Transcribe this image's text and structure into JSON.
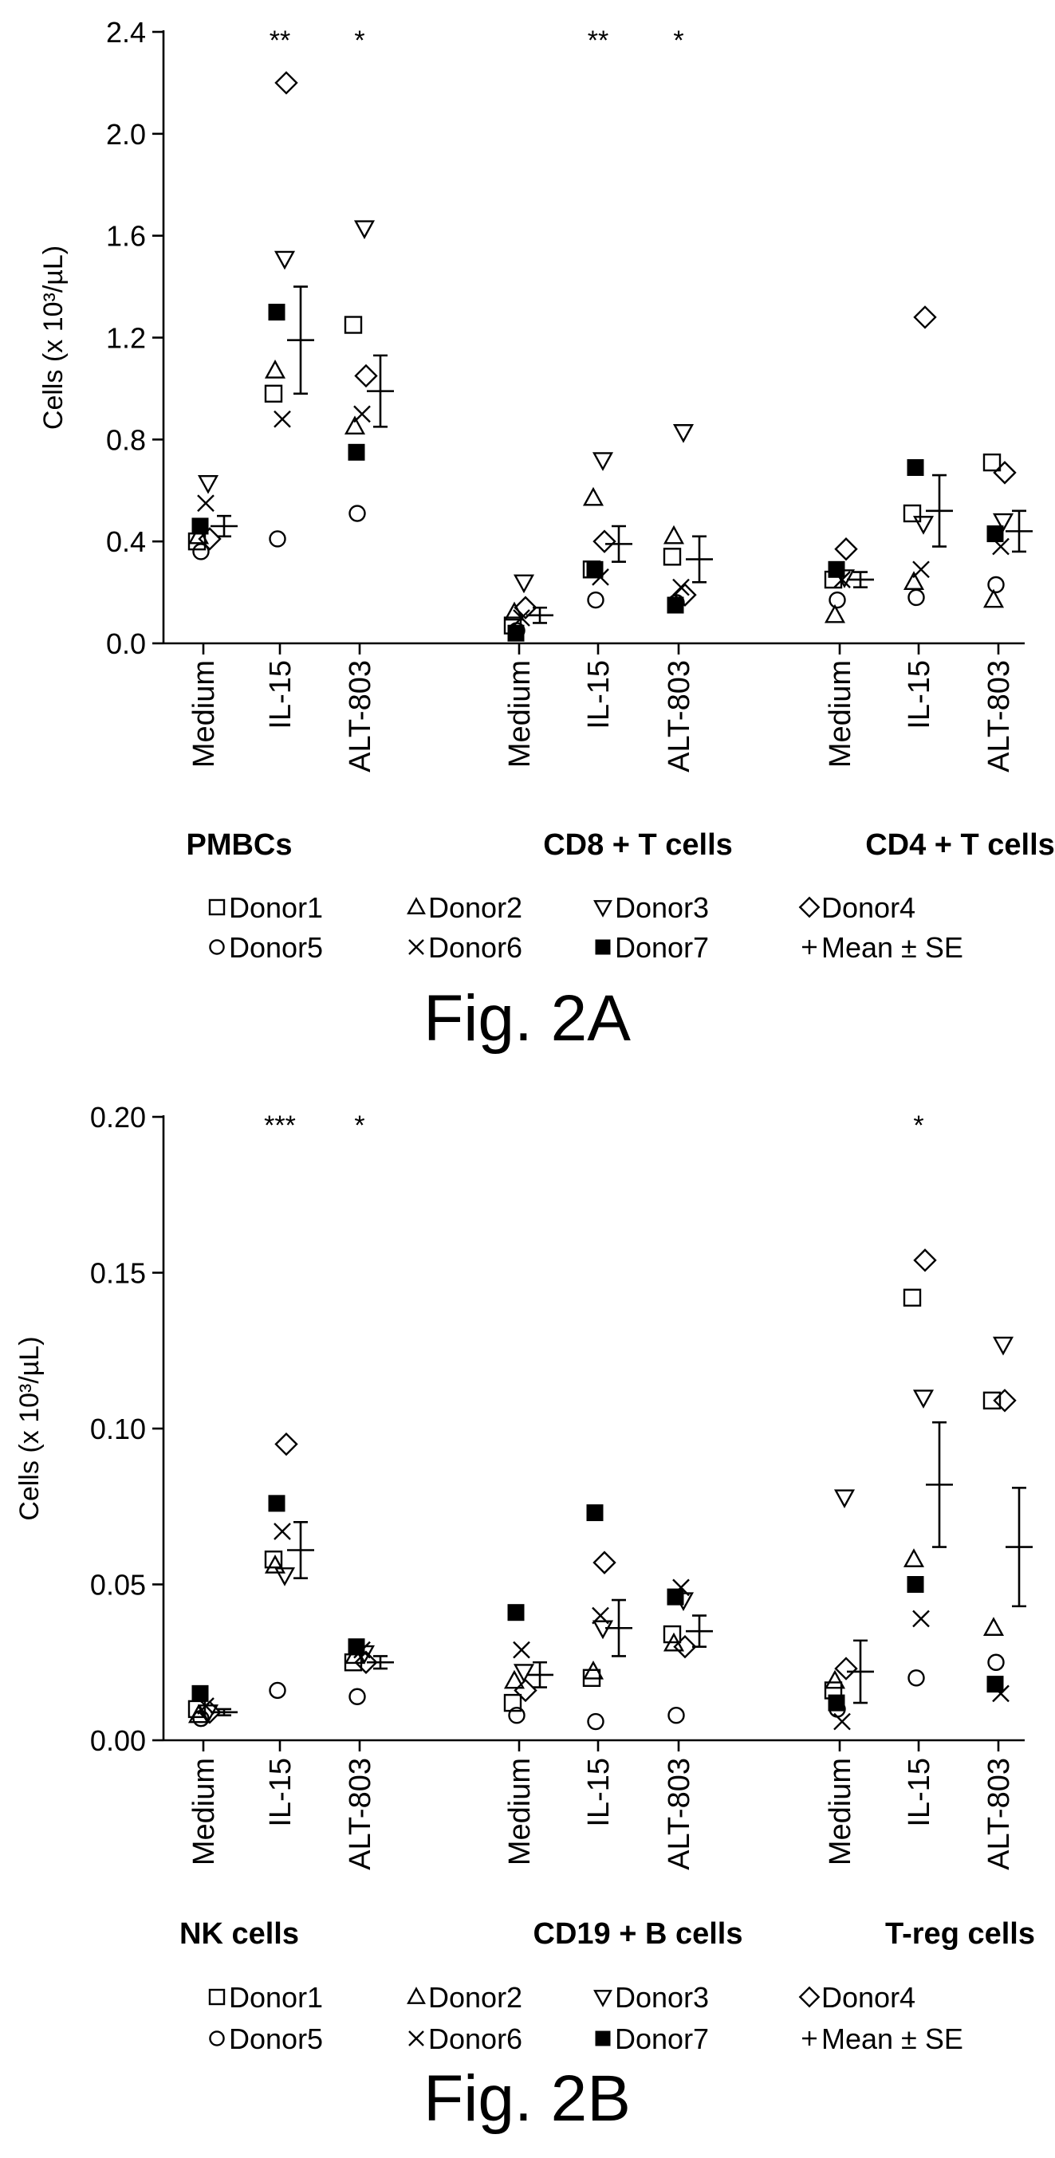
{
  "legend": {
    "donors": [
      "Donor1",
      "Donor2",
      "Donor3",
      "Donor4",
      "Donor5",
      "Donor6",
      "Donor7"
    ],
    "mean_label": "Mean ± SE",
    "markers": [
      "square-open",
      "triangle-up-open",
      "triangle-down-open",
      "diamond-open",
      "circle-open",
      "x-mark",
      "square-filled"
    ]
  },
  "chart_data": [
    {
      "type": "scatter",
      "figure_label": "Fig. 2A",
      "ylabel": "Cells (x 10³/µL)",
      "ylim": [
        0,
        2.4
      ],
      "yticks": [
        "0.0",
        "0.4",
        "0.8",
        "1.2",
        "1.6",
        "2.0",
        "2.4"
      ],
      "ytick_values": [
        0,
        0.4,
        0.8,
        1.2,
        1.6,
        2.0,
        2.4
      ],
      "groups": [
        {
          "label": "PMBCs",
          "conditions": [
            {
              "label": "Medium",
              "sig": "",
              "donors": [
                0.4,
                0.42,
                0.63,
                0.41,
                0.36,
                0.55,
                0.46
              ],
              "mean": 0.46,
              "se": 0.04
            },
            {
              "label": "IL-15",
              "sig": "**",
              "donors": [
                0.98,
                1.07,
                1.51,
                2.2,
                0.41,
                0.88,
                1.3
              ],
              "mean": 1.19,
              "se": 0.21
            },
            {
              "label": "ALT-803",
              "sig": "*",
              "donors": [
                1.25,
                0.85,
                1.63,
                1.05,
                0.51,
                0.9,
                0.75
              ],
              "mean": 0.99,
              "se": 0.14
            }
          ]
        },
        {
          "label": "CD8 + T cells",
          "conditions": [
            {
              "label": "Medium",
              "sig": "",
              "donors": [
                0.07,
                0.12,
                0.24,
                0.14,
                0.05,
                0.1,
                0.04
              ],
              "mean": 0.11,
              "se": 0.03
            },
            {
              "label": "IL-15",
              "sig": "**",
              "donors": [
                0.29,
                0.57,
                0.72,
                0.4,
                0.17,
                0.26,
                0.29
              ],
              "mean": 0.39,
              "se": 0.07
            },
            {
              "label": "ALT-803",
              "sig": "*",
              "donors": [
                0.34,
                0.42,
                0.83,
                0.19,
                0.16,
                0.22,
                0.15
              ],
              "mean": 0.33,
              "se": 0.09
            }
          ]
        },
        {
          "label": "CD4 + T cells",
          "conditions": [
            {
              "label": "Medium",
              "sig": "",
              "donors": [
                0.25,
                0.11,
                0.26,
                0.37,
                0.17,
                0.25,
                0.29
              ],
              "mean": 0.25,
              "se": 0.03
            },
            {
              "label": "IL-15",
              "sig": "",
              "donors": [
                0.51,
                0.24,
                0.47,
                1.28,
                0.18,
                0.29,
                0.69
              ],
              "mean": 0.52,
              "se": 0.14
            },
            {
              "label": "ALT-803",
              "sig": "",
              "donors": [
                0.71,
                0.17,
                0.48,
                0.67,
                0.23,
                0.38,
                0.43
              ],
              "mean": 0.44,
              "se": 0.08
            }
          ]
        }
      ]
    },
    {
      "type": "scatter",
      "figure_label": "Fig. 2B",
      "ylabel": "Cells (x 10³/µL)",
      "ylim": [
        0,
        0.2
      ],
      "yticks": [
        "0.00",
        "0.05",
        "0.10",
        "0.15",
        "0.20"
      ],
      "ytick_values": [
        0,
        0.05,
        0.1,
        0.15,
        0.2
      ],
      "groups": [
        {
          "label": "NK cells",
          "conditions": [
            {
              "label": "Medium",
              "sig": "",
              "donors": [
                0.01,
                0.008,
                0.009,
                0.009,
                0.007,
                0.011,
                0.015
              ],
              "mean": 0.009,
              "se": 0.001
            },
            {
              "label": "IL-15",
              "sig": "***",
              "donors": [
                0.058,
                0.056,
                0.053,
                0.095,
                0.016,
                0.067,
                0.076
              ],
              "mean": 0.061,
              "se": 0.009
            },
            {
              "label": "ALT-803",
              "sig": "*",
              "donors": [
                0.025,
                0.027,
                0.028,
                0.025,
                0.014,
                0.029,
                0.03
              ],
              "mean": 0.025,
              "se": 0.002
            }
          ]
        },
        {
          "label": "CD19 + B cells",
          "conditions": [
            {
              "label": "Medium",
              "sig": "",
              "donors": [
                0.012,
                0.019,
                0.022,
                0.016,
                0.008,
                0.029,
                0.041
              ],
              "mean": 0.021,
              "se": 0.004
            },
            {
              "label": "IL-15",
              "sig": "",
              "donors": [
                0.02,
                0.022,
                0.036,
                0.057,
                0.006,
                0.04,
                0.073
              ],
              "mean": 0.036,
              "se": 0.009
            },
            {
              "label": "ALT-803",
              "sig": "",
              "donors": [
                0.034,
                0.031,
                0.045,
                0.03,
                0.008,
                0.049,
                0.046
              ],
              "mean": 0.035,
              "se": 0.005
            }
          ]
        },
        {
          "label": "T-reg cells",
          "conditions": [
            {
              "label": "Medium",
              "sig": "",
              "donors": [
                0.016,
                0.019,
                0.078,
                0.023,
                0.01,
                0.006,
                0.012
              ],
              "mean": 0.022,
              "se": 0.01
            },
            {
              "label": "IL-15",
              "sig": "*",
              "donors": [
                0.142,
                0.058,
                0.11,
                0.154,
                0.02,
                0.039,
                0.05
              ],
              "mean": 0.082,
              "se": 0.02
            },
            {
              "label": "ALT-803",
              "sig": "",
              "donors": [
                0.109,
                0.036,
                0.127,
                0.109,
                0.025,
                0.015,
                0.018
              ],
              "mean": 0.062,
              "se": 0.019
            }
          ]
        }
      ]
    }
  ]
}
